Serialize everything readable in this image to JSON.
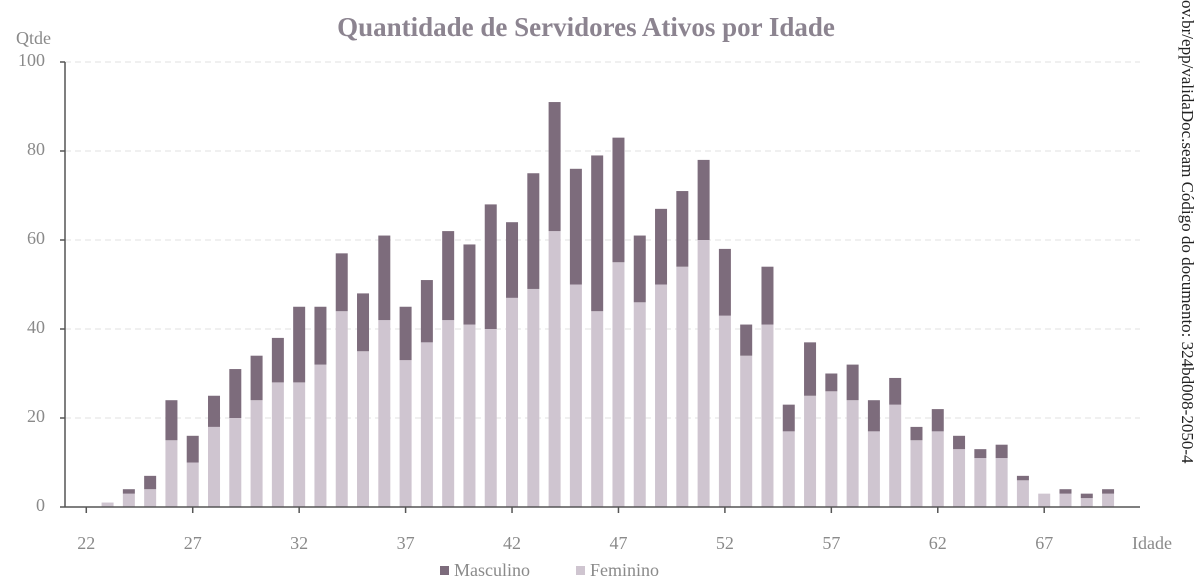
{
  "chart_data": {
    "type": "stacked_bar",
    "title": "Quantidade de Servidores Ativos por Idade",
    "y_label": "Qtde",
    "x_label": "Idade",
    "watermark": "ov.br/epp/validaDoc.seam Código do documento: 324bd008-2050-4",
    "x": [
      23,
      24,
      25,
      26,
      27,
      28,
      29,
      30,
      31,
      32,
      33,
      34,
      35,
      36,
      37,
      38,
      39,
      40,
      41,
      42,
      43,
      44,
      45,
      46,
      47,
      48,
      49,
      50,
      51,
      52,
      53,
      54,
      55,
      56,
      57,
      58,
      59,
      60,
      61,
      62,
      63,
      64,
      65,
      66,
      67,
      68,
      69,
      70
    ],
    "series": [
      {
        "name": "Masculino",
        "color": "#7d6c7c",
        "values": [
          0,
          1,
          3,
          9,
          6,
          7,
          11,
          10,
          10,
          17,
          13,
          13,
          13,
          19,
          12,
          14,
          20,
          18,
          28,
          17,
          26,
          29,
          26,
          35,
          28,
          15,
          17,
          17,
          18,
          15,
          7,
          13,
          6,
          12,
          4,
          8,
          7,
          6,
          3,
          5,
          3,
          2,
          3,
          1,
          0,
          1,
          1,
          1
        ]
      },
      {
        "name": "Feminino",
        "color": "#cfc5d0",
        "values": [
          1,
          3,
          4,
          15,
          10,
          18,
          20,
          24,
          28,
          28,
          32,
          44,
          35,
          42,
          33,
          37,
          42,
          41,
          40,
          47,
          49,
          62,
          50,
          44,
          55,
          46,
          50,
          54,
          60,
          43,
          34,
          41,
          17,
          25,
          26,
          24,
          17,
          23,
          15,
          17,
          13,
          11,
          11,
          6,
          3,
          3,
          2,
          3
        ]
      }
    ],
    "xlim": [
      21,
      71.5
    ],
    "xticks": [
      22,
      27,
      32,
      37,
      42,
      47,
      52,
      57,
      62,
      67
    ],
    "ylim": [
      0,
      100
    ],
    "yticks": [
      0,
      20,
      40,
      60,
      80,
      100
    ],
    "grid": true,
    "legend": "bottom"
  }
}
